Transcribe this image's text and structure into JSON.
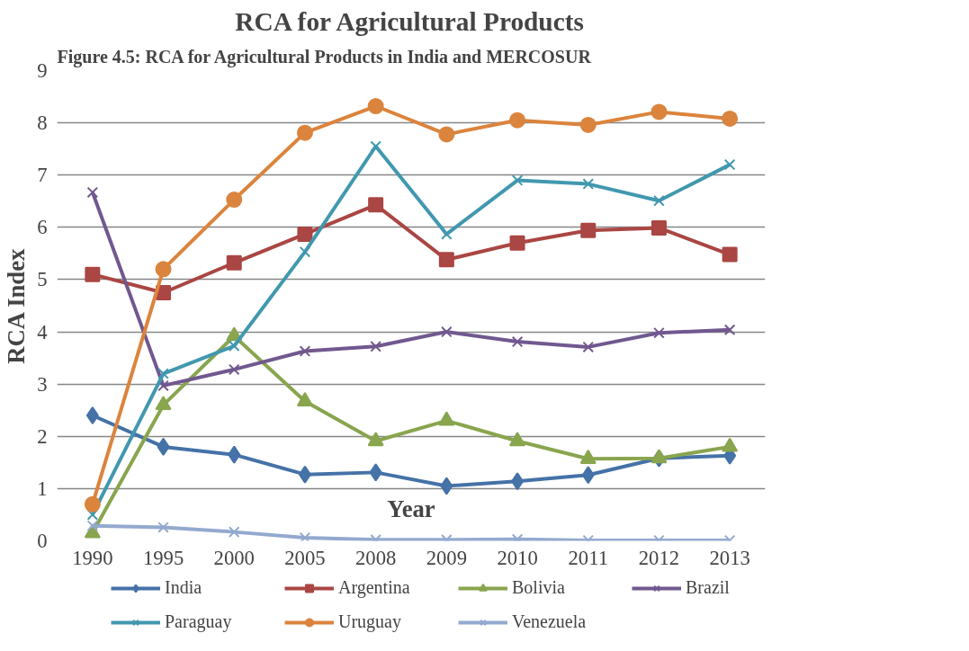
{
  "chart_data": {
    "type": "line",
    "title": "RCA for Agricultural Products",
    "xlabel": "Year",
    "ylabel": "RCA Index",
    "annotations": [
      "Figure 4.5: RCA for Agricultural Products in India and MERCOSUR"
    ],
    "categories": [
      "1990",
      "1995",
      "2000",
      "2005",
      "2008",
      "2009",
      "2010",
      "2011",
      "2012",
      "2013"
    ],
    "ylim": [
      0,
      9
    ],
    "yticks": [
      0,
      1,
      2,
      3,
      4,
      5,
      6,
      7,
      8,
      9
    ],
    "grid": "y",
    "legend": "bottom",
    "line_style": "solid",
    "series": [
      {
        "name": "India",
        "color": "#4572a7",
        "marker": "diamond",
        "values": [
          2.4,
          1.8,
          1.65,
          1.27,
          1.31,
          1.05,
          1.14,
          1.26,
          1.58,
          1.63
        ]
      },
      {
        "name": "Argentina",
        "color": "#aa4643",
        "marker": "square",
        "values": [
          5.1,
          4.75,
          5.32,
          5.87,
          6.43,
          5.38,
          5.7,
          5.94,
          5.99,
          5.48
        ]
      },
      {
        "name": "Bolivia",
        "color": "#89a54e",
        "marker": "triangle",
        "values": [
          0.15,
          2.6,
          3.92,
          2.67,
          1.91,
          2.3,
          1.91,
          1.57,
          1.58,
          1.8
        ]
      },
      {
        "name": "Brazil",
        "color": "#71588f",
        "marker": "cross",
        "values": [
          6.67,
          2.97,
          3.28,
          3.63,
          3.72,
          4.0,
          3.81,
          3.71,
          3.98,
          4.04
        ]
      },
      {
        "name": "Paraguay",
        "color": "#4198af",
        "marker": "cross",
        "values": [
          0.5,
          3.2,
          3.73,
          5.53,
          7.55,
          5.87,
          6.9,
          6.83,
          6.51,
          7.2
        ]
      },
      {
        "name": "Uruguay",
        "color": "#db843d",
        "marker": "circle",
        "values": [
          0.7,
          5.2,
          6.53,
          7.81,
          8.32,
          7.78,
          8.05,
          7.96,
          8.21,
          8.08
        ]
      },
      {
        "name": "Venezuela",
        "color": "#93a9cf",
        "marker": "cross",
        "values": [
          0.29,
          0.26,
          0.17,
          0.06,
          0.02,
          0.02,
          0.03,
          0.01,
          0.01,
          0.01
        ]
      }
    ]
  }
}
